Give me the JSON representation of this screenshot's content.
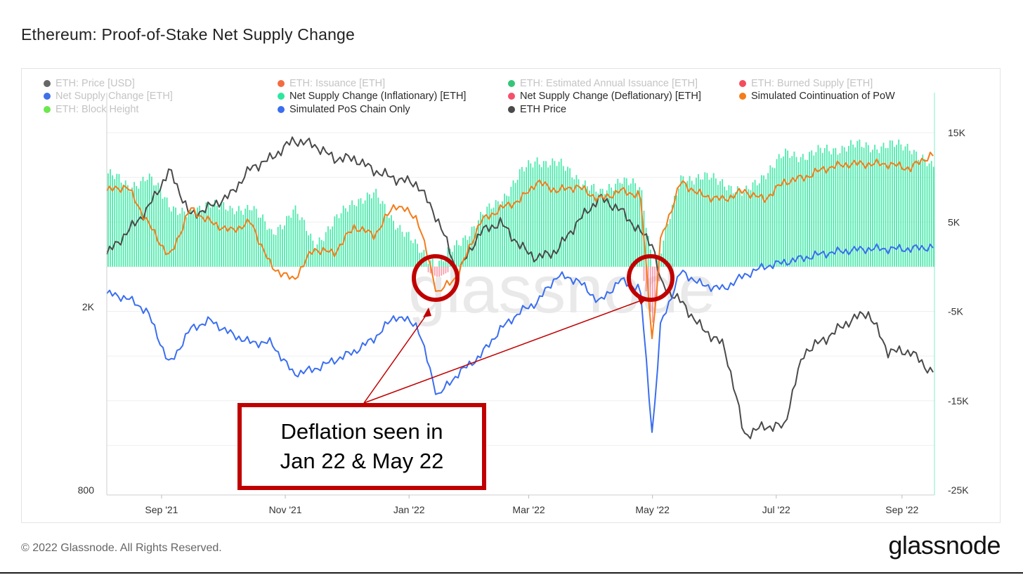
{
  "title": "Ethereum: Proof-of-Stake Net Supply Change",
  "footer": "© 2022 Glassnode. All Rights Reserved.",
  "logo": "glassnode",
  "watermark": "glassnode",
  "annotation": {
    "line1": "Deflation seen in",
    "line2": "Jan 22 & May 22",
    "color": "#c00000"
  },
  "legend": [
    {
      "label": "ETH: Price [USD]",
      "color": "#555555",
      "active": false
    },
    {
      "label": "ETH: Issuance [ETH]",
      "color": "#f25c2c",
      "active": false
    },
    {
      "label": "ETH: Estimated Annual Issuance [ETH]",
      "color": "#1fbf6a",
      "active": false
    },
    {
      "label": "ETH: Burned Supply [ETH]",
      "color": "#f23a4a",
      "active": false
    },
    {
      "label": "Net Supply Change [ETH]",
      "color": "#2a60e6",
      "active": false
    },
    {
      "label": "Net Supply Change (Inflationary) [ETH]",
      "color": "#2ee6a0",
      "active": true
    },
    {
      "label": "Net Supply Change (Deflationary) [ETH]",
      "color": "#f4516c",
      "active": true
    },
    {
      "label": "Simulated Cointinuation of PoW",
      "color": "#f47c1a",
      "active": true
    },
    {
      "label": "ETH: Block Height",
      "color": "#5ce63a",
      "active": false
    },
    {
      "label": "Simulated PoS Chain Only",
      "color": "#3a6ef0",
      "active": true
    },
    {
      "label": "ETH Price",
      "color": "#4a4a4a",
      "active": true
    }
  ],
  "chart_data": {
    "type": "line",
    "x_ticks": [
      "Sep '21",
      "Nov '21",
      "Jan '22",
      "Mar '22",
      "May '22",
      "Jul '22",
      "Sep '22"
    ],
    "y_left_ticks": [
      "2K",
      "800"
    ],
    "y_left_scale": "log",
    "y_right_ticks": [
      "15K",
      "5K",
      "-5K",
      "-15K",
      "-25K"
    ],
    "y_right_range": [
      -25000,
      15000
    ],
    "grid": true,
    "legend_position": "top",
    "x": [
      "2021-08-05",
      "2021-08-15",
      "2021-08-25",
      "2021-09-05",
      "2021-09-15",
      "2021-09-25",
      "2021-10-05",
      "2021-10-15",
      "2021-10-25",
      "2021-11-05",
      "2021-11-15",
      "2021-11-25",
      "2021-12-05",
      "2021-12-15",
      "2021-12-25",
      "2022-01-05",
      "2022-01-15",
      "2022-01-25",
      "2022-02-05",
      "2022-02-15",
      "2022-02-25",
      "2022-03-05",
      "2022-03-15",
      "2022-03-25",
      "2022-04-05",
      "2022-04-15",
      "2022-04-25",
      "2022-05-01",
      "2022-05-05",
      "2022-05-15",
      "2022-05-25",
      "2022-06-05",
      "2022-06-15",
      "2022-06-25",
      "2022-07-05",
      "2022-07-15",
      "2022-07-25",
      "2022-08-05",
      "2022-08-15",
      "2022-08-25",
      "2022-09-05",
      "2022-09-15"
    ],
    "series": [
      {
        "name": "Net Supply Change (Inflationary) [ETH]",
        "axis": "right",
        "color": "#2ee6a0",
        "type": "bar",
        "values": [
          10500,
          9000,
          10000,
          7000,
          5500,
          7500,
          6000,
          7000,
          3500,
          6500,
          2500,
          5000,
          7500,
          8000,
          5000,
          2000,
          300,
          2500,
          5500,
          7500,
          10500,
          12000,
          11500,
          10000,
          8000,
          10000,
          8500,
          0,
          2000,
          10000,
          10000,
          9500,
          8000,
          10500,
          12500,
          12500,
          13000,
          13500,
          13500,
          13500,
          13500,
          11000
        ]
      },
      {
        "name": "Net Supply Change (Deflationary) [ETH]",
        "axis": "right",
        "color": "#f4516c",
        "type": "bar",
        "values": [
          0,
          0,
          0,
          0,
          0,
          0,
          0,
          0,
          0,
          0,
          0,
          0,
          0,
          0,
          0,
          0,
          -1200,
          0,
          0,
          0,
          0,
          0,
          0,
          0,
          0,
          0,
          0,
          -6500,
          0,
          0,
          0,
          0,
          0,
          0,
          0,
          0,
          0,
          0,
          0,
          0,
          0,
          0
        ]
      },
      {
        "name": "Simulated Cointinuation of PoW",
        "axis": "right",
        "color": "#f47c1a",
        "values": [
          8500,
          9000,
          5000,
          1000,
          6500,
          5000,
          4000,
          5000,
          0,
          -1500,
          2000,
          1500,
          4500,
          3500,
          7000,
          5500,
          -3000,
          -1000,
          5000,
          6500,
          7500,
          9500,
          8500,
          9000,
          7500,
          8500,
          8000,
          -8500,
          3000,
          9500,
          8000,
          7500,
          8500,
          7500,
          9500,
          10000,
          11000,
          11500,
          11500,
          11500,
          11000,
          12500
        ]
      },
      {
        "name": "Simulated PoS Chain Only",
        "axis": "right",
        "color": "#3a6ef0",
        "values": [
          -3000,
          -3500,
          -5000,
          -11000,
          -7000,
          -6000,
          -7500,
          -8500,
          -8500,
          -12000,
          -11500,
          -10500,
          -9500,
          -8000,
          -5500,
          -6500,
          -14500,
          -12000,
          -10000,
          -7000,
          -5000,
          -4000,
          -1000,
          -1500,
          -4000,
          -1500,
          -2500,
          -19000,
          -6500,
          -500,
          -2000,
          -2500,
          -1000,
          0,
          500,
          1000,
          1500,
          1800,
          2000,
          2000,
          2000,
          2200
        ]
      },
      {
        "name": "ETH Price",
        "axis": "left",
        "color": "#4a4a4a",
        "values": [
          2600,
          2900,
          3250,
          3950,
          3150,
          3300,
          3500,
          4000,
          4200,
          4600,
          4500,
          4200,
          4200,
          3950,
          3800,
          3700,
          3100,
          2350,
          2900,
          3050,
          2700,
          2550,
          2650,
          3050,
          3450,
          3250,
          2900,
          2750,
          2250,
          2050,
          1800,
          1650,
          1050,
          1100,
          1100,
          1600,
          1700,
          1850,
          1950,
          1600,
          1600,
          1450
        ]
      }
    ]
  }
}
